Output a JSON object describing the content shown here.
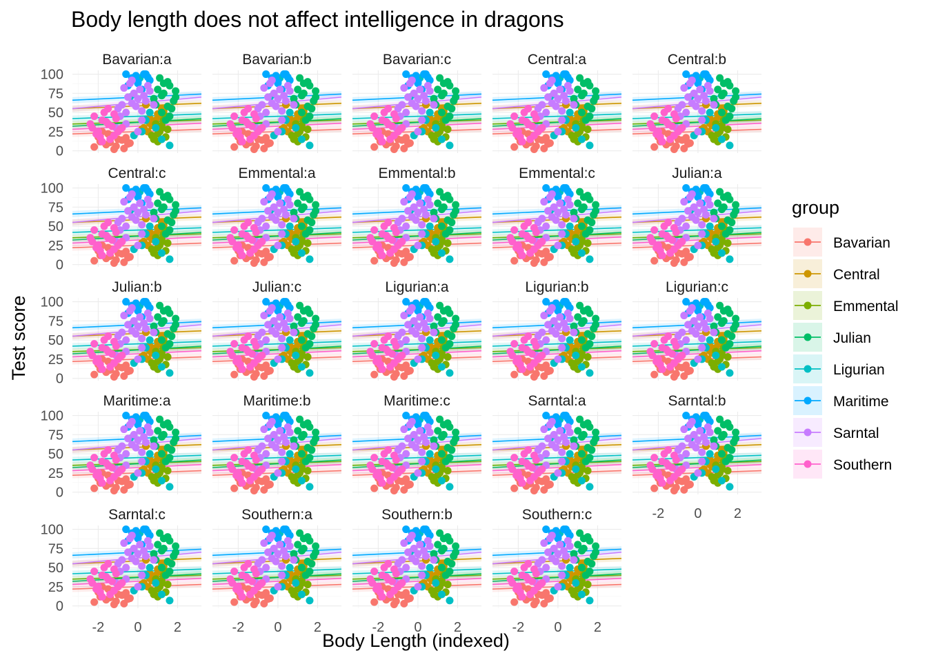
{
  "chart_data": {
    "type": "scatter",
    "title": "Body length does not affect intelligence in dragons",
    "xlabel": "Body Length (indexed)",
    "ylabel": "Test score",
    "xlim": [
      -3.3,
      3.2
    ],
    "ylim": [
      -3,
      105
    ],
    "x_ticks": [
      -2,
      0,
      2
    ],
    "x_tick_labels": [
      "-2",
      "0",
      "2"
    ],
    "y_ticks": [
      0,
      25,
      50,
      75,
      100
    ],
    "y_tick_labels": [
      "0",
      "25",
      "50",
      "75",
      "100"
    ],
    "grid": true,
    "facet_layout": {
      "ncol": 5,
      "nrow": 5
    },
    "panels": [
      "Bavarian:a",
      "Bavarian:b",
      "Bavarian:c",
      "Central:a",
      "Central:b",
      "Central:c",
      "Emmental:a",
      "Emmental:b",
      "Emmental:c",
      "Julian:a",
      "Julian:b",
      "Julian:c",
      "Ligurian:a",
      "Ligurian:b",
      "Ligurian:c",
      "Maritime:a",
      "Maritime:b",
      "Maritime:c",
      "Sarntal:a",
      "Sarntal:b",
      "Sarntal:c",
      "Southern:a",
      "Southern:b",
      "Southern:c"
    ],
    "legend": {
      "title": "group",
      "position": "right"
    },
    "series": [
      {
        "name": "Bavarian",
        "color": "#F8766D",
        "x": [
          -2.2,
          -1.9,
          -1.6,
          -1.3,
          -1.0,
          -0.7,
          -0.4,
          -2.0,
          -1.5,
          -1.1,
          -0.8,
          -0.5,
          -1.8,
          -1.2,
          -0.6,
          -1.4
        ],
        "y": [
          5,
          12,
          8,
          20,
          15,
          3,
          10,
          18,
          22,
          6,
          14,
          9,
          25,
          2,
          17,
          11
        ],
        "fit": [
          [
            -3.3,
            22
          ],
          [
            3.2,
            28
          ]
        ]
      },
      {
        "name": "Central",
        "color": "#CD9600",
        "x": [
          0.3,
          0.6,
          0.9,
          1.2,
          0.5,
          0.8,
          1.0,
          0.4,
          0.7,
          1.1,
          0.2,
          0.9,
          1.3,
          0.6
        ],
        "y": [
          30,
          42,
          35,
          55,
          25,
          38,
          48,
          60,
          33,
          45,
          28,
          40,
          52,
          36
        ],
        "fit": [
          [
            -3.3,
            55
          ],
          [
            3.2,
            62
          ]
        ]
      },
      {
        "name": "Emmental",
        "color": "#7CAE00",
        "x": [
          0.8,
          1.0,
          1.2,
          1.4,
          0.9,
          1.1,
          1.3,
          1.5,
          1.0,
          0.7,
          1.2,
          1.4
        ],
        "y": [
          15,
          22,
          30,
          18,
          35,
          25,
          40,
          28,
          12,
          20,
          33,
          45
        ],
        "fit": [
          [
            -3.3,
            35
          ],
          [
            3.2,
            40
          ]
        ]
      },
      {
        "name": "Julian",
        "color": "#00BE67",
        "x": [
          0.9,
          1.3,
          1.6,
          1.9,
          1.2,
          1.5,
          1.8,
          1.0,
          1.4,
          1.7,
          1.1,
          1.6,
          1.9,
          1.3,
          0.8,
          1.5,
          1.2
        ],
        "y": [
          60,
          75,
          85,
          70,
          50,
          90,
          65,
          80,
          40,
          55,
          95,
          45,
          78,
          88,
          68,
          58,
          72
        ],
        "fit": [
          [
            -3.3,
            32
          ],
          [
            3.2,
            42
          ]
        ]
      },
      {
        "name": "Ligurian",
        "color": "#00BFC4",
        "x": [
          -0.4,
          0.1,
          0.4,
          0.9,
          -0.2,
          0.6,
          1.2,
          1.6,
          0.2,
          0.8
        ],
        "y": [
          70,
          95,
          40,
          30,
          20,
          50,
          15,
          7,
          25,
          60
        ],
        "fit": [
          [
            -3.3,
            42
          ],
          [
            3.2,
            48
          ]
        ]
      },
      {
        "name": "Maritime",
        "color": "#00A9FF",
        "x": [
          -0.6,
          -0.3,
          0.0,
          0.3,
          0.6,
          -0.5,
          -0.1,
          0.2,
          0.5,
          0.0,
          0.4,
          -0.2
        ],
        "y": [
          100,
          95,
          88,
          100,
          92,
          85,
          98,
          80,
          96,
          90,
          100,
          94
        ],
        "fit": [
          [
            -3.3,
            66
          ],
          [
            3.2,
            74
          ]
        ]
      },
      {
        "name": "Sarntal",
        "color": "#C77CFF",
        "x": [
          -1.0,
          -0.8,
          -0.5,
          -0.2,
          0.1,
          0.4,
          -0.9,
          -0.6,
          -0.3,
          0.0,
          0.3,
          0.6,
          -0.7,
          -0.4,
          -0.1,
          0.2,
          0.5,
          -0.6,
          -1.1,
          0.0,
          0.8,
          -0.3,
          0.2
        ],
        "y": [
          55,
          60,
          70,
          75,
          80,
          65,
          45,
          50,
          62,
          68,
          72,
          78,
          82,
          88,
          58,
          52,
          85,
          35,
          30,
          25,
          60,
          92,
          40
        ],
        "fit": [
          [
            -3.3,
            55
          ],
          [
            3.2,
            70
          ]
        ]
      },
      {
        "name": "Southern",
        "color": "#FF61CC",
        "x": [
          -2.3,
          -2.0,
          -1.8,
          -1.5,
          -1.2,
          -0.9,
          -2.2,
          -1.9,
          -1.6,
          -1.3,
          -1.0,
          -2.1,
          -1.7,
          -1.4,
          -1.1,
          -0.8,
          -2.4,
          -1.5,
          -1.8,
          -1.2
        ],
        "y": [
          30,
          25,
          40,
          35,
          20,
          28,
          45,
          18,
          38,
          32,
          25,
          22,
          50,
          15,
          42,
          30,
          35,
          55,
          12,
          48
        ],
        "fit": [
          [
            -3.3,
            28
          ],
          [
            3.2,
            36
          ]
        ]
      }
    ]
  }
}
